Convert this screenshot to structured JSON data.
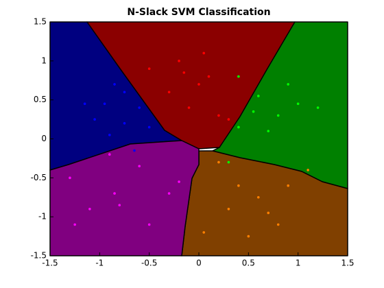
{
  "chart_data": {
    "type": "scatter",
    "title": "N-Slack SVM Classification",
    "xlim": [
      -1.5,
      1.5
    ],
    "ylim": [
      -1.5,
      1.5
    ],
    "xticks": [
      -1.5,
      -1,
      -0.5,
      0,
      0.5,
      1,
      1.5
    ],
    "yticks": [
      -1.5,
      -1,
      -0.5,
      0,
      0.5,
      1,
      1.5
    ],
    "series": [
      {
        "color": "#ff0000",
        "x": [
          -0.5,
          -0.2,
          0.0,
          0.1,
          -0.1,
          0.2,
          -0.3,
          0.3,
          0.05,
          -0.15
        ],
        "y": [
          0.9,
          1.0,
          0.7,
          0.8,
          0.4,
          0.3,
          0.6,
          0.25,
          1.1,
          0.85
        ]
      },
      {
        "color": "#0000ff",
        "x": [
          -1.15,
          -0.95,
          -0.75,
          -0.9,
          -0.6,
          -0.85,
          -0.5,
          -0.75,
          -1.05,
          -0.65
        ],
        "y": [
          0.45,
          0.45,
          0.2,
          0.05,
          0.4,
          0.7,
          0.15,
          0.6,
          0.25,
          -0.15
        ]
      },
      {
        "color": "#00ff00",
        "x": [
          0.4,
          0.6,
          0.8,
          1.0,
          0.4,
          0.7,
          0.55,
          1.2,
          0.9,
          0.3
        ],
        "y": [
          0.8,
          0.55,
          0.3,
          0.45,
          0.15,
          0.1,
          0.35,
          0.4,
          0.7,
          -0.3
        ]
      },
      {
        "color": "#ff8000",
        "x": [
          0.2,
          0.4,
          0.6,
          0.8,
          0.3,
          0.5,
          0.9,
          1.1,
          0.7,
          0.05
        ],
        "y": [
          -0.3,
          -0.6,
          -0.75,
          -1.1,
          -0.9,
          -1.25,
          -0.6,
          -0.4,
          -0.95,
          -1.2
        ]
      },
      {
        "color": "#ff00ff",
        "x": [
          -1.3,
          -1.1,
          -0.8,
          -0.5,
          -0.6,
          -1.25,
          -0.3,
          -0.9,
          -0.2,
          -0.85
        ],
        "y": [
          -0.5,
          -0.9,
          -0.85,
          -1.1,
          -0.35,
          -1.1,
          -0.7,
          -0.2,
          -0.55,
          -0.7
        ]
      }
    ]
  }
}
